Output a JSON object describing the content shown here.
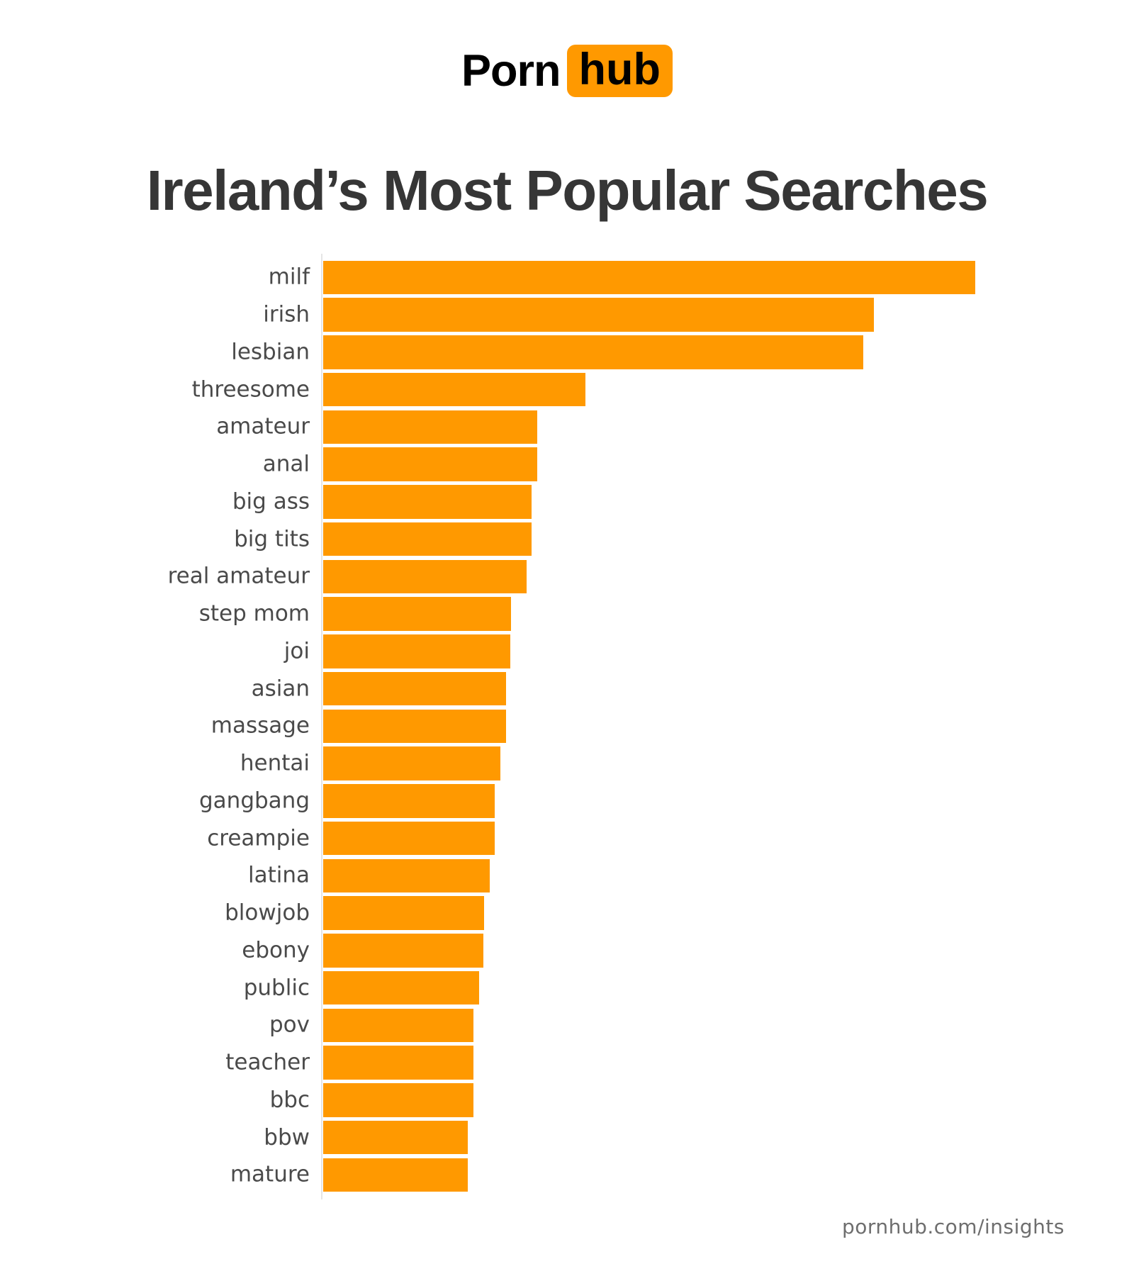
{
  "logo": {
    "part1": "Porn",
    "part2": "hub"
  },
  "title": "Ireland’s Most Popular Searches",
  "footer": "pornhub.com/insights",
  "colors": {
    "brand_orange": "#FF9900",
    "title_dark": "#363636",
    "label_gray": "#4A4A4A",
    "footer_gray": "#6E6E6E",
    "axis_line_gray": "#E5E5E5",
    "logo_text_black": "#000000"
  },
  "chart_data": {
    "type": "bar",
    "orientation": "horizontal",
    "title": "Ireland’s Most Popular Searches",
    "xlabel": "",
    "ylabel": "",
    "axis_tick_labels_shown": false,
    "grid": false,
    "legend": false,
    "value_unit": "relative search volume, top term = 100 (no numeric axis shown in image)",
    "xlim": [
      0,
      100
    ],
    "categories": [
      "milf",
      "irish",
      "lesbian",
      "threesome",
      "amateur",
      "anal",
      "big ass",
      "big tits",
      "real amateur",
      "step mom",
      "joi",
      "asian",
      "massage",
      "hentai",
      "gangbang",
      "creampie",
      "latina",
      "blowjob",
      "ebony",
      "public",
      "pov",
      "teacher",
      "bbc",
      "bbw",
      "mature"
    ],
    "values": [
      100,
      84.5,
      82.8,
      40.2,
      32.8,
      32.8,
      32.0,
      32.0,
      31.2,
      28.8,
      28.7,
      28.0,
      28.0,
      27.2,
      26.3,
      26.3,
      25.5,
      24.7,
      24.6,
      23.9,
      23.0,
      23.0,
      23.0,
      22.2,
      22.2
    ]
  }
}
